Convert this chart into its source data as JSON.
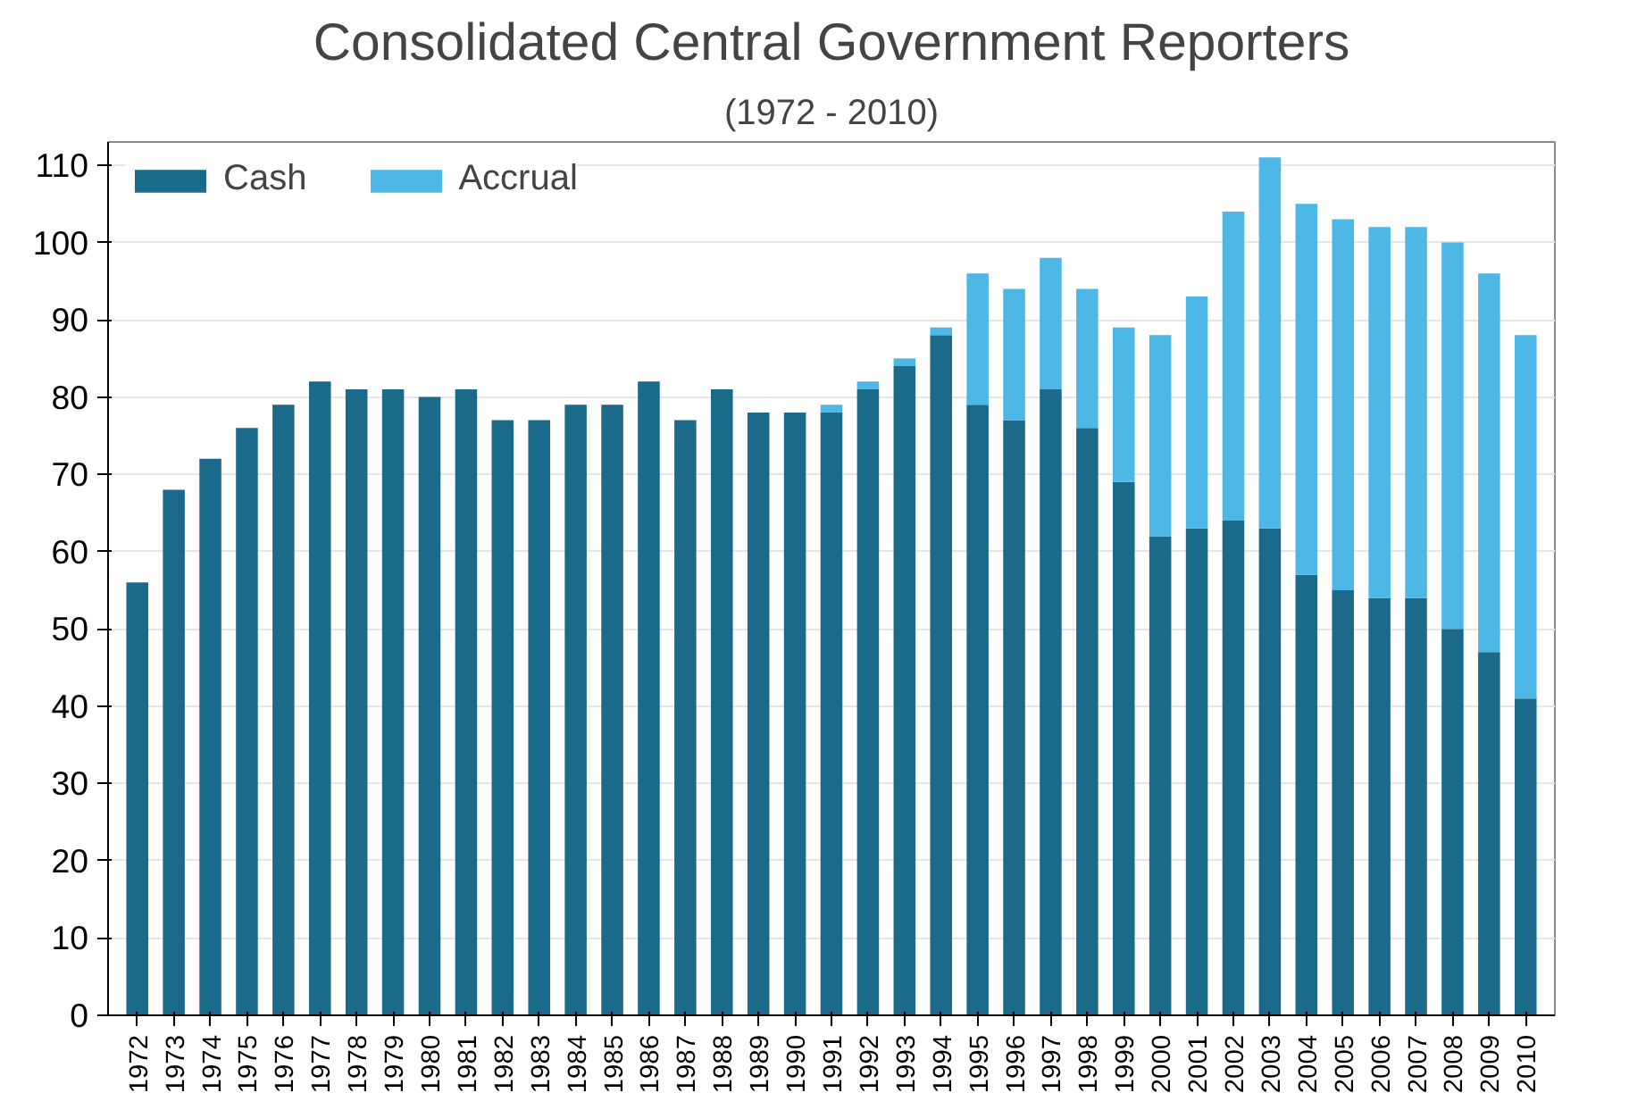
{
  "chart_data": {
    "type": "bar",
    "title": "Consolidated Central Government Reporters",
    "subtitle": "(1972 - 2010)",
    "categories": [
      "1972",
      "1973",
      "1974",
      "1975",
      "1976",
      "1977",
      "1978",
      "1979",
      "1980",
      "1981",
      "1982",
      "1983",
      "1984",
      "1985",
      "1986",
      "1987",
      "1988",
      "1989",
      "1990",
      "1991",
      "1992",
      "1993",
      "1994",
      "1995",
      "1996",
      "1997",
      "1998",
      "1999",
      "2000",
      "2001",
      "2002",
      "2003",
      "2004",
      "2005",
      "2006",
      "2007",
      "2008",
      "2009",
      "2010"
    ],
    "series": [
      {
        "name": "Cash",
        "color": "#1b6a89",
        "values": [
          56,
          68,
          72,
          76,
          79,
          82,
          81,
          81,
          80,
          81,
          77,
          77,
          79,
          79,
          82,
          77,
          81,
          78,
          78,
          78,
          81,
          84,
          88,
          79,
          77,
          81,
          76,
          69,
          62,
          63,
          64,
          63,
          57,
          55,
          54,
          54,
          50,
          47,
          41
        ]
      },
      {
        "name": "Accrual",
        "color": "#4db8e6",
        "values": [
          0,
          0,
          0,
          0,
          0,
          0,
          0,
          0,
          0,
          0,
          0,
          0,
          0,
          0,
          0,
          0,
          0,
          0,
          0,
          1,
          1,
          1,
          1,
          17,
          17,
          17,
          18,
          20,
          26,
          30,
          40,
          48,
          48,
          48,
          48,
          48,
          50,
          49,
          47
        ]
      }
    ],
    "stacked": true,
    "ylim": [
      0,
      113
    ],
    "yticks": [
      0,
      10,
      20,
      30,
      40,
      50,
      60,
      70,
      80,
      90,
      100,
      110
    ],
    "grid": "y",
    "legend": "top left"
  }
}
